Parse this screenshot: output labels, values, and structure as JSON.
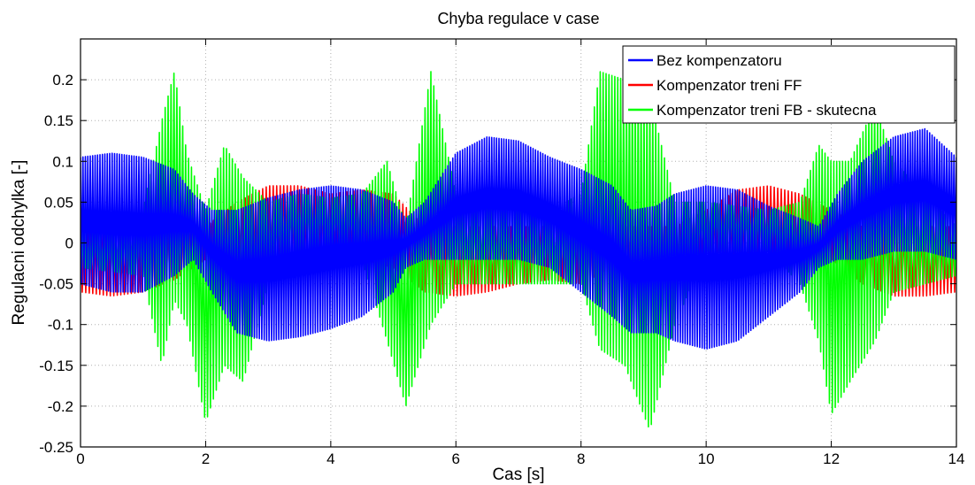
{
  "chart_data": {
    "type": "line",
    "title": "Chyba regulace v case",
    "xlabel": "Cas [s]",
    "ylabel": "Regulacni odchylka [-]",
    "xlim": [
      0,
      14
    ],
    "ylim": [
      -0.25,
      0.25
    ],
    "x_ticks": [
      0,
      2,
      4,
      6,
      8,
      10,
      12,
      14
    ],
    "y_ticks": [
      -0.25,
      -0.2,
      -0.15,
      -0.1,
      -0.05,
      0,
      0.05,
      0.1,
      0.15,
      0.2
    ],
    "x_tick_labels": [
      "0",
      "2",
      "4",
      "6",
      "8",
      "10",
      "12",
      "14"
    ],
    "y_tick_labels": [
      "-0.25",
      "-0.2",
      "-0.15",
      "-0.1",
      "-0.05",
      "0",
      "0.05",
      "0.1",
      "0.15",
      "0.2"
    ],
    "grid": true,
    "legend_position": "top-right",
    "series": [
      {
        "name": "Bez kompenzatoru",
        "color": "#0000ff",
        "envelope_x": [
          0,
          0.5,
          1,
          1.5,
          1.8,
          2.1,
          2.5,
          3,
          3.5,
          4,
          4.5,
          5,
          5.2,
          5.5,
          6,
          6.5,
          7,
          7.5,
          8,
          8.5,
          8.8,
          9.2,
          9.5,
          10,
          10.5,
          11,
          11.5,
          11.8,
          12.1,
          12.5,
          13,
          13.5,
          14
        ],
        "envelope_upper": [
          0.105,
          0.11,
          0.105,
          0.09,
          0.06,
          0.04,
          0.04,
          0.055,
          0.065,
          0.07,
          0.065,
          0.05,
          0.03,
          0.05,
          0.11,
          0.13,
          0.125,
          0.105,
          0.09,
          0.07,
          0.04,
          0.045,
          0.06,
          0.07,
          0.065,
          0.045,
          0.03,
          0.02,
          0.06,
          0.1,
          0.13,
          0.14,
          0.105
        ],
        "envelope_lower": [
          -0.05,
          -0.06,
          -0.06,
          -0.04,
          -0.02,
          -0.06,
          -0.11,
          -0.12,
          -0.115,
          -0.105,
          -0.09,
          -0.06,
          -0.03,
          -0.02,
          -0.02,
          -0.02,
          -0.02,
          -0.03,
          -0.06,
          -0.09,
          -0.11,
          -0.11,
          -0.12,
          -0.13,
          -0.12,
          -0.09,
          -0.06,
          -0.03,
          -0.02,
          -0.02,
          -0.01,
          -0.01,
          -0.02
        ]
      },
      {
        "name": "Kompenzator treni FF",
        "color": "#ff0000",
        "envelope_x": [
          0,
          0.5,
          1,
          1.5,
          2,
          2.5,
          3,
          3.5,
          4,
          4.5,
          5,
          5.5,
          6,
          6.5,
          7,
          7.5,
          8,
          8.5,
          9,
          9.5,
          10,
          10.5,
          11,
          11.5,
          12,
          12.5,
          13,
          13.5,
          14
        ],
        "envelope_upper": [
          0.02,
          0.02,
          0.02,
          0.02,
          0.02,
          0.05,
          0.07,
          0.07,
          0.06,
          0.065,
          0.06,
          0.02,
          0.02,
          0.02,
          0.02,
          0.02,
          0.02,
          0.02,
          0.02,
          0.02,
          0.04,
          0.065,
          0.07,
          0.06,
          0.04,
          0.02,
          0.02,
          0.02,
          0.02
        ],
        "envelope_lower": [
          -0.06,
          -0.065,
          -0.06,
          -0.045,
          -0.02,
          -0.02,
          -0.02,
          -0.02,
          -0.02,
          -0.02,
          -0.03,
          -0.06,
          -0.065,
          -0.06,
          -0.05,
          -0.045,
          -0.05,
          -0.03,
          -0.02,
          -0.02,
          -0.02,
          -0.02,
          -0.02,
          -0.02,
          -0.02,
          -0.05,
          -0.065,
          -0.065,
          -0.06
        ]
      },
      {
        "name": "Kompenzator treni FB - skutecna",
        "color": "#00ff00",
        "envelope_x": [
          0,
          0.5,
          1,
          1.3,
          1.5,
          1.7,
          2,
          2.3,
          2.6,
          3,
          3.5,
          4,
          4.5,
          4.9,
          5.2,
          5.6,
          6,
          6.5,
          7,
          7.5,
          8,
          8.3,
          8.7,
          9.1,
          9.5,
          10,
          10.5,
          11,
          11.5,
          11.8,
          12,
          12.3,
          12.7,
          13,
          13.5,
          14
        ],
        "envelope_upper": [
          0.02,
          0.015,
          0.04,
          0.15,
          0.21,
          0.11,
          0.04,
          0.12,
          0.08,
          0.05,
          0.06,
          0.055,
          0.06,
          0.1,
          0.02,
          0.21,
          0.06,
          0.045,
          0.04,
          0.04,
          0.06,
          0.21,
          0.2,
          0.18,
          0.05,
          0.05,
          0.045,
          0.04,
          0.05,
          0.12,
          0.1,
          0.1,
          0.17,
          0.1,
          0.06,
          0.02
        ],
        "envelope_lower": [
          -0.03,
          -0.035,
          -0.04,
          -0.15,
          -0.07,
          -0.1,
          -0.22,
          -0.15,
          -0.17,
          -0.05,
          -0.01,
          -0.01,
          -0.02,
          -0.12,
          -0.2,
          -0.1,
          -0.05,
          -0.05,
          -0.05,
          -0.05,
          -0.05,
          -0.13,
          -0.15,
          -0.23,
          -0.1,
          -0.01,
          -0.01,
          -0.01,
          -0.05,
          -0.12,
          -0.21,
          -0.17,
          -0.12,
          -0.06,
          -0.05,
          -0.04
        ]
      }
    ]
  }
}
